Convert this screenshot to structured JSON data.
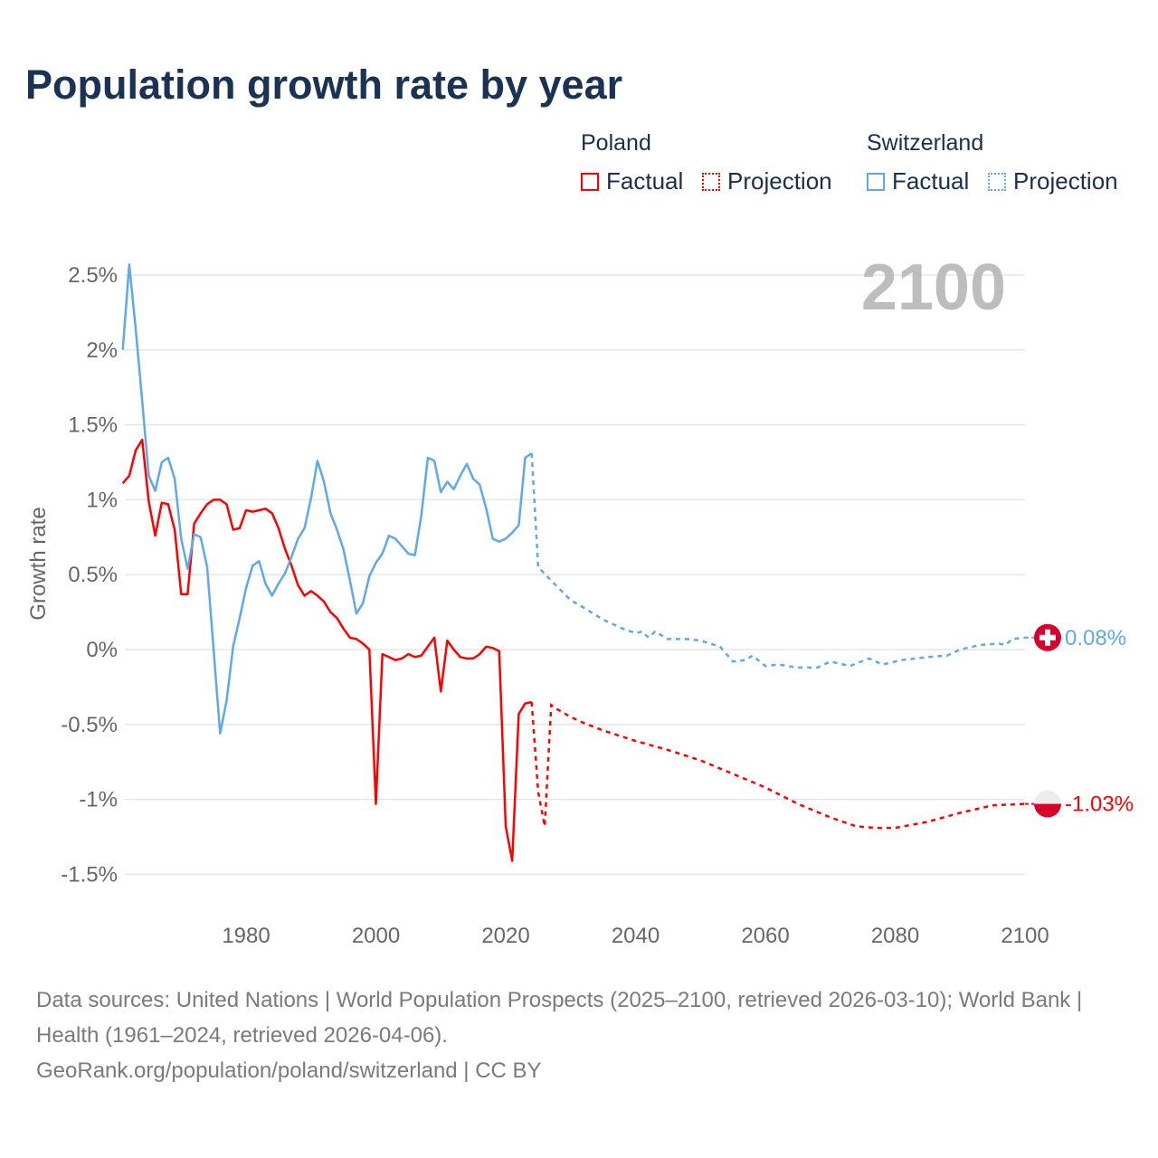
{
  "title": "Population growth rate by year",
  "legend": {
    "groups": [
      {
        "country": "Poland",
        "factual": "Factual",
        "projection": "Projection",
        "color": "#ff0000"
      },
      {
        "country": "Switzerland",
        "factual": "Factual",
        "projection": "Projection",
        "color": "#5ea8ec"
      }
    ]
  },
  "year_watermark": "2100",
  "footer": {
    "sources": "Data sources: United Nations | World Population Prospects (2025–2100, retrieved 2026-03-10); World Bank | Health (1961–2024, retrieved 2026-04-06).",
    "link": "GeoRank.org/population/poland/switzerland | CC BY"
  },
  "chart_data": {
    "type": "line",
    "title": "Population growth rate by year",
    "xlabel": "",
    "ylabel": "Growth rate",
    "xlim": [
      1961,
      2100
    ],
    "ylim": [
      -1.7,
      2.6
    ],
    "x_ticks": [
      1980,
      2000,
      2020,
      2040,
      2060,
      2080,
      2100
    ],
    "y_ticks": [
      {
        "v": 2.5,
        "label": "2.5%"
      },
      {
        "v": 2,
        "label": "2%"
      },
      {
        "v": 1.5,
        "label": "1.5%"
      },
      {
        "v": 1,
        "label": "1%"
      },
      {
        "v": 0.5,
        "label": "0.5%"
      },
      {
        "v": 0,
        "label": "0%"
      },
      {
        "v": -0.5,
        "label": "-0.5%"
      },
      {
        "v": -1,
        "label": "-1%"
      },
      {
        "v": -1.5,
        "label": "-1.5%"
      }
    ],
    "grid": true,
    "legend_position": "top-right",
    "series": [
      {
        "name": "Poland",
        "color": "#ff0000",
        "end_label": "-1.03%",
        "factual": {
          "x": [
            1961,
            1962,
            1963,
            1964,
            1965,
            1966,
            1967,
            1968,
            1969,
            1970,
            1971,
            1972,
            1973,
            1974,
            1975,
            1976,
            1977,
            1978,
            1979,
            1980,
            1981,
            1982,
            1983,
            1984,
            1985,
            1986,
            1987,
            1988,
            1989,
            1990,
            1991,
            1992,
            1993,
            1994,
            1995,
            1996,
            1997,
            1998,
            1999,
            2000,
            2001,
            2002,
            2003,
            2004,
            2005,
            2006,
            2007,
            2008,
            2009,
            2010,
            2011,
            2012,
            2013,
            2014,
            2015,
            2016,
            2017,
            2018,
            2019,
            2020,
            2021,
            2022,
            2023,
            2024
          ],
          "y": [
            1.11,
            1.16,
            1.33,
            1.4,
            0.99,
            0.76,
            0.98,
            0.97,
            0.8,
            0.37,
            0.37,
            0.84,
            0.91,
            0.97,
            1.0,
            1.0,
            0.97,
            0.8,
            0.81,
            0.93,
            0.92,
            0.93,
            0.94,
            0.91,
            0.81,
            0.67,
            0.56,
            0.43,
            0.36,
            0.39,
            0.36,
            0.32,
            0.25,
            0.21,
            0.14,
            0.08,
            0.07,
            0.04,
            0.0,
            -1.03,
            -0.03,
            -0.05,
            -0.07,
            -0.06,
            -0.03,
            -0.05,
            -0.04,
            0.02,
            0.08,
            -0.28,
            0.06,
            0.0,
            -0.05,
            -0.06,
            -0.06,
            -0.03,
            0.02,
            0.01,
            -0.01,
            -1.18,
            -1.41,
            -0.43,
            -0.36,
            -0.35
          ]
        },
        "projection": {
          "x": [
            2024,
            2025,
            2026,
            2027,
            2028,
            2030,
            2032,
            2035,
            2040,
            2045,
            2050,
            2055,
            2060,
            2065,
            2070,
            2074,
            2077,
            2080,
            2085,
            2090,
            2095,
            2100
          ],
          "y": [
            -0.35,
            -0.95,
            -1.18,
            -0.37,
            -0.4,
            -0.45,
            -0.49,
            -0.54,
            -0.61,
            -0.67,
            -0.74,
            -0.83,
            -0.92,
            -1.03,
            -1.12,
            -1.18,
            -1.19,
            -1.19,
            -1.15,
            -1.09,
            -1.04,
            -1.03
          ]
        }
      },
      {
        "name": "Switzerland",
        "color": "#5ea8ec",
        "end_label": "0.08%",
        "factual": {
          "x": [
            1961,
            1962,
            1963,
            1964,
            1965,
            1966,
            1967,
            1968,
            1969,
            1970,
            1971,
            1972,
            1973,
            1974,
            1975,
            1976,
            1977,
            1978,
            1979,
            1980,
            1981,
            1982,
            1983,
            1984,
            1985,
            1986,
            1987,
            1988,
            1989,
            1990,
            1991,
            1992,
            1993,
            1994,
            1995,
            1996,
            1997,
            1998,
            1999,
            2000,
            2001,
            2002,
            2003,
            2004,
            2005,
            2006,
            2007,
            2008,
            2009,
            2010,
            2011,
            2012,
            2013,
            2014,
            2015,
            2016,
            2017,
            2018,
            2019,
            2020,
            2021,
            2022,
            2023,
            2024
          ],
          "y": [
            2.0,
            2.57,
            2.14,
            1.66,
            1.16,
            1.06,
            1.25,
            1.28,
            1.14,
            0.74,
            0.54,
            0.77,
            0.75,
            0.55,
            0.0,
            -0.56,
            -0.34,
            0.02,
            0.21,
            0.41,
            0.56,
            0.59,
            0.44,
            0.36,
            0.44,
            0.51,
            0.62,
            0.74,
            0.81,
            1.01,
            1.26,
            1.12,
            0.91,
            0.8,
            0.67,
            0.46,
            0.24,
            0.31,
            0.49,
            0.58,
            0.64,
            0.76,
            0.74,
            0.69,
            0.64,
            0.63,
            0.9,
            1.28,
            1.26,
            1.05,
            1.12,
            1.07,
            1.16,
            1.24,
            1.14,
            1.1,
            0.94,
            0.74,
            0.72,
            0.74,
            0.78,
            0.83,
            1.28,
            1.31
          ]
        },
        "projection": {
          "x": [
            2024,
            2025,
            2027,
            2030,
            2032,
            2035,
            2038,
            2040,
            2041,
            2042,
            2043,
            2045,
            2048,
            2050,
            2053,
            2055,
            2057,
            2058,
            2060,
            2062,
            2065,
            2068,
            2070,
            2073,
            2076,
            2078,
            2081,
            2085,
            2088,
            2090,
            2093,
            2096,
            2097,
            2098,
            2100
          ],
          "y": [
            1.31,
            0.55,
            0.46,
            0.33,
            0.28,
            0.2,
            0.14,
            0.11,
            0.12,
            0.08,
            0.12,
            0.07,
            0.07,
            0.06,
            0.02,
            -0.08,
            -0.07,
            -0.04,
            -0.11,
            -0.1,
            -0.12,
            -0.12,
            -0.08,
            -0.11,
            -0.06,
            -0.1,
            -0.07,
            -0.05,
            -0.04,
            0.0,
            0.03,
            0.04,
            0.03,
            0.07,
            0.08
          ]
        }
      }
    ]
  }
}
